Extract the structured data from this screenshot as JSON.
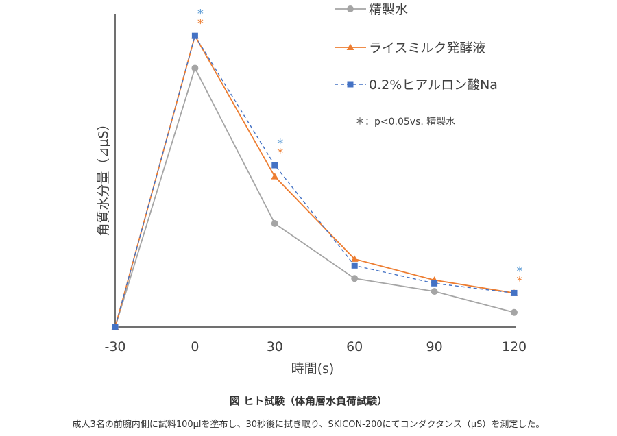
{
  "chart_data": {
    "type": "line",
    "title": "",
    "xlabel": "時間(s)",
    "ylabel": "角質水分量（⊿μS）",
    "x": [
      -30,
      0,
      30,
      60,
      90,
      120
    ],
    "xticks": [
      "-30",
      "0",
      "30",
      "60",
      "90",
      "120"
    ],
    "ylim": [
      0,
      100
    ],
    "grid": false,
    "legend_position": "top-right",
    "series": [
      {
        "name": "精製水",
        "values": [
          0,
          80,
          32,
          15,
          11,
          4.5
        ],
        "color": "#a5a5a5",
        "marker": "circle",
        "dash": "solid"
      },
      {
        "name": "ライスミルク発酵液",
        "values": [
          0,
          90,
          46.5,
          21,
          14.5,
          10.5
        ],
        "color": "#ed7d31",
        "marker": "triangle",
        "dash": "solid"
      },
      {
        "name": "0.2%ヒアルロン酸Na",
        "values": [
          0,
          90,
          50,
          19,
          13.5,
          10.5
        ],
        "color": "#4472c4",
        "marker": "square",
        "dash": "dashed"
      }
    ],
    "significance": {
      "symbol": "*",
      "x_positions": [
        0,
        30,
        120
      ],
      "colors": [
        "#5b9bd5",
        "#ed7d31"
      ]
    },
    "significance_note": "＊：p<0.05vs.  精製水"
  },
  "caption": {
    "title": "図 ヒト試験（体角層水負荷試験）",
    "note": "成人3名の前腕内側に試料100µlを塗布し、30秒後に拭き取り、SKICON-200にてコンダクタンス（μS）を測定した。"
  }
}
